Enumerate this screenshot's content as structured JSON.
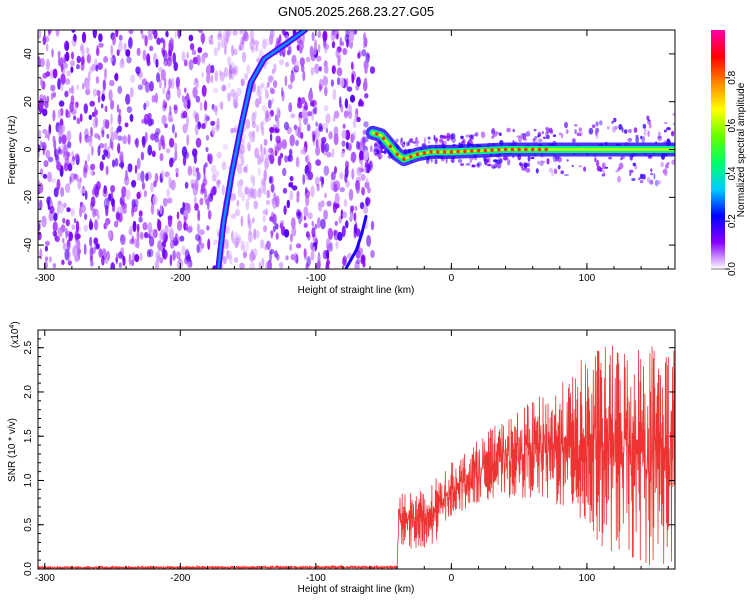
{
  "title": "GN05.2025.268.23.27.G05",
  "chart_data": [
    {
      "type": "heatmap",
      "xlabel": "Height of straight line (km)",
      "ylabel": "Frequency (Hz)",
      "xlim": [
        -305,
        165
      ],
      "ylim": [
        -50,
        50
      ],
      "x_ticks": [
        {
          "value": -300,
          "label": "-300"
        },
        {
          "value": -200,
          "label": "-200"
        },
        {
          "value": -100,
          "label": "-100"
        },
        {
          "value": 0,
          "label": "0"
        },
        {
          "value": 100,
          "label": "100"
        }
      ],
      "y_ticks": [
        {
          "value": 40,
          "label": "40"
        },
        {
          "value": 20,
          "label": "20"
        },
        {
          "value": 0,
          "label": "0"
        },
        {
          "value": -20,
          "label": "-20"
        },
        {
          "value": -40,
          "label": "-40"
        }
      ],
      "noise_region_x": [
        -305,
        -58
      ],
      "diagonal_track": [
        [
          -172,
          -50
        ],
        [
          -168,
          -30
        ],
        [
          -162,
          -10
        ],
        [
          -155,
          10
        ],
        [
          -148,
          28
        ],
        [
          -138,
          38
        ],
        [
          -120,
          45
        ],
        [
          -108,
          50
        ]
      ],
      "secondary_track": [
        [
          -78,
          -50
        ],
        [
          -70,
          -42
        ],
        [
          -66,
          -35
        ],
        [
          -63,
          -28
        ]
      ],
      "main_track": [
        [
          -58,
          7
        ],
        [
          -52,
          6
        ],
        [
          -46,
          2
        ],
        [
          -40,
          -2
        ],
        [
          -35,
          -4
        ],
        [
          -30,
          -3
        ],
        [
          -25,
          -2
        ],
        [
          -15,
          -1
        ],
        [
          0,
          -1
        ],
        [
          20,
          -0.5
        ],
        [
          40,
          0
        ],
        [
          60,
          0
        ],
        [
          80,
          0
        ],
        [
          100,
          0
        ],
        [
          120,
          0
        ],
        [
          140,
          0
        ],
        [
          165,
          0
        ]
      ],
      "colorbar": {
        "label": "Normalized spectral amplitude",
        "min": 0.0,
        "max": 1.0,
        "ticks": [
          {
            "value": 0.0,
            "label": "0.0"
          },
          {
            "value": 0.2,
            "label": "0.2"
          },
          {
            "value": 0.4,
            "label": "0.4"
          },
          {
            "value": 0.6,
            "label": "0.6"
          },
          {
            "value": 0.8,
            "label": "0.8"
          }
        ],
        "stops": [
          "#ffffff",
          "#8800ff",
          "#0000ff",
          "#00ccff",
          "#00ff66",
          "#66ff00",
          "#ffff00",
          "#ff8800",
          "#ff0000",
          "#ff00aa"
        ]
      }
    },
    {
      "type": "line",
      "xlabel": "Height of straight line (km)",
      "ylabel": "SNR (10 * v/v)",
      "scale_label": "(x10",
      "scale_exponent": "4",
      "scale_close": ")",
      "xlim": [
        -305,
        165
      ],
      "ylim": [
        0,
        2.7
      ],
      "x_ticks": [
        {
          "value": -300,
          "label": "-300"
        },
        {
          "value": -200,
          "label": "-200"
        },
        {
          "value": -100,
          "label": "-100"
        },
        {
          "value": 0,
          "label": "0"
        },
        {
          "value": 100,
          "label": "100"
        }
      ],
      "y_ticks": [
        {
          "value": 0.0,
          "label": "0.0"
        },
        {
          "value": 0.5,
          "label": "0.5"
        },
        {
          "value": 1.0,
          "label": "1.0"
        },
        {
          "value": 1.5,
          "label": "1.5"
        },
        {
          "value": 2.0,
          "label": "2.0"
        },
        {
          "value": 2.5,
          "label": "2.5"
        }
      ],
      "series": [
        {
          "color": "#ee3333",
          "envelope": [
            {
              "x": -305,
              "lo": 0.0,
              "hi": 0.03
            },
            {
              "x": -40,
              "lo": 0.0,
              "hi": 0.04
            },
            {
              "x": -39,
              "lo": 0.3,
              "hi": 0.9
            },
            {
              "x": -20,
              "lo": 0.1,
              "hi": 0.9
            },
            {
              "x": 0,
              "lo": 0.6,
              "hi": 1.2
            },
            {
              "x": 30,
              "lo": 0.8,
              "hi": 1.6
            },
            {
              "x": 60,
              "lo": 0.8,
              "hi": 1.9
            },
            {
              "x": 90,
              "lo": 0.6,
              "hi": 2.2
            },
            {
              "x": 100,
              "lo": 0.3,
              "hi": 2.5
            },
            {
              "x": 140,
              "lo": 0.05,
              "hi": 2.6
            },
            {
              "x": 165,
              "lo": 0.0,
              "hi": 2.6
            }
          ]
        }
      ]
    }
  ]
}
